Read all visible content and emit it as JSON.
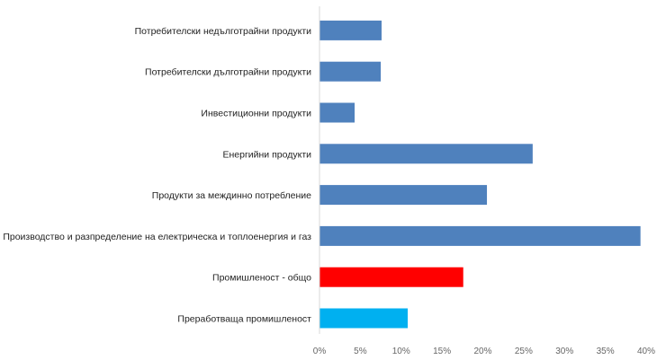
{
  "chart_data": {
    "type": "bar",
    "orientation": "horizontal",
    "categories": [
      "Потребителски недълготрайни продукти",
      "Потребителски дълготрайни продукти",
      "Инвестиционни продукти",
      "Енергийни продукти",
      "Продукти за междинно потребление",
      "Производство и разпределение на електрическа и топлоенергия и газ",
      "Промишленост - общо",
      "Преработваща промишленост"
    ],
    "values": [
      7.6,
      7.5,
      4.3,
      26.1,
      20.5,
      39.3,
      17.6,
      10.8
    ],
    "colors": [
      "#4f81bd",
      "#4f81bd",
      "#4f81bd",
      "#4f81bd",
      "#4f81bd",
      "#4f81bd",
      "#ff0000",
      "#00b0f0"
    ],
    "xlim": [
      0,
      40
    ],
    "xticks": [
      "0%",
      "5%",
      "10%",
      "15%",
      "20%",
      "25%",
      "30%",
      "35%",
      "40%"
    ],
    "title": "",
    "xlabel": "",
    "ylabel": "",
    "grid": false,
    "legend": "none"
  }
}
